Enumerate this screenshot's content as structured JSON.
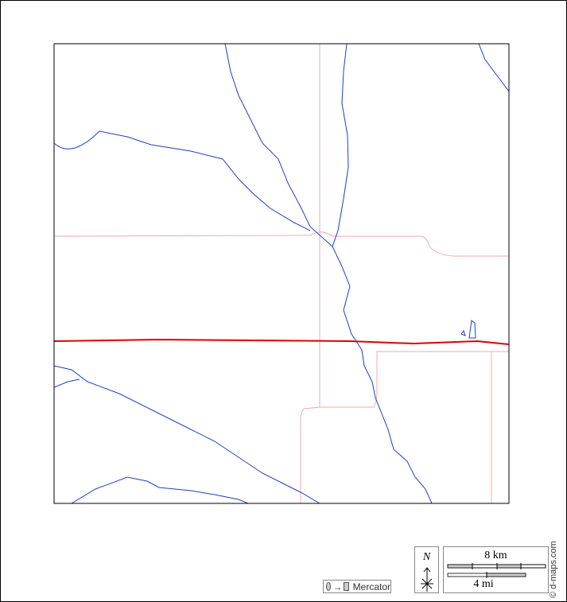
{
  "map": {
    "colors": {
      "river": "#1a3fd0",
      "road_minor": "#f4a8a8",
      "road_major": "#e00000",
      "frame": "#000000"
    }
  },
  "projection": {
    "label": "Mercator",
    "icon_from": "circle-icon",
    "icon_to": "square-icon",
    "arrow": "→"
  },
  "compass": {
    "north_label": "N"
  },
  "scale": {
    "km_label": "8 km",
    "mi_label": "4 mi"
  },
  "credit": {
    "text": "© d-maps.com"
  }
}
